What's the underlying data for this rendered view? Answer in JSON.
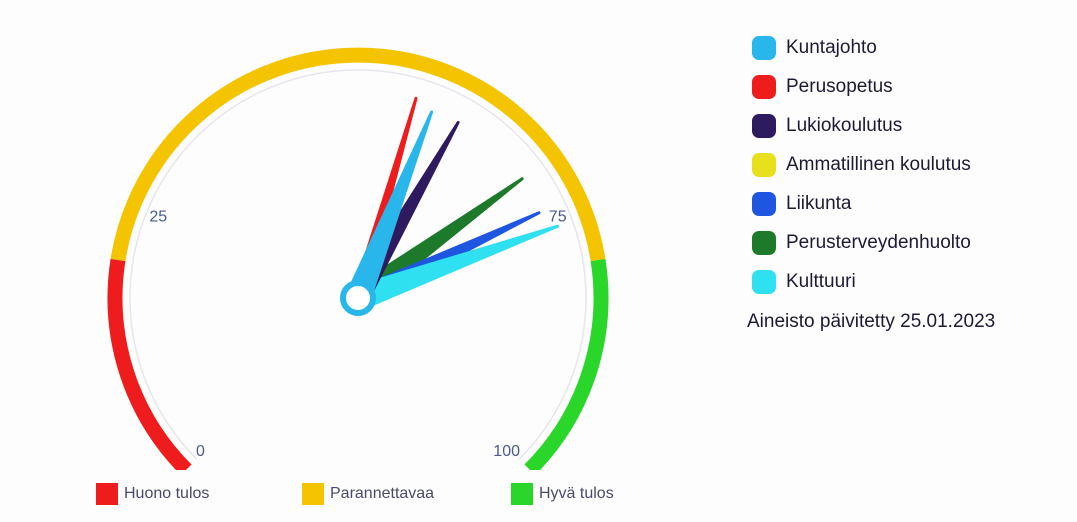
{
  "chart_data": {
    "type": "gauge",
    "scale": [
      0,
      100
    ],
    "ticks": [
      "0",
      "25",
      "75",
      "100"
    ],
    "bands": [
      {
        "label": "Huono tulos",
        "from": 0,
        "to": 20,
        "color": "#ee1c1c"
      },
      {
        "label": "Parannettavaa",
        "from": 20,
        "to": 80,
        "color": "#f5c400"
      },
      {
        "label": "Hyvä tulos",
        "from": 80,
        "to": 100,
        "color": "#2bd62b"
      }
    ],
    "series": [
      {
        "name": "Kuntajohto",
        "value": 58,
        "color": "#29b6ea"
      },
      {
        "name": "Perusopetus",
        "value": 56,
        "color": "#ee1c1c"
      },
      {
        "name": "Lukiokoulutus",
        "value": 61,
        "color": "#2e1a5e"
      },
      {
        "name": "Ammatillinen koulutus",
        "value": null,
        "color": "#e8e01c"
      },
      {
        "name": "Liikunta",
        "value": 74,
        "color": "#1f56e0"
      },
      {
        "name": "Perusterveydenhuolto",
        "value": 70,
        "color": "#1d7a2a"
      },
      {
        "name": "Kulttuuri",
        "value": 76,
        "color": "#2fe0f0"
      }
    ]
  },
  "footnote": "Aineisto päivitetty 25.01.2023"
}
